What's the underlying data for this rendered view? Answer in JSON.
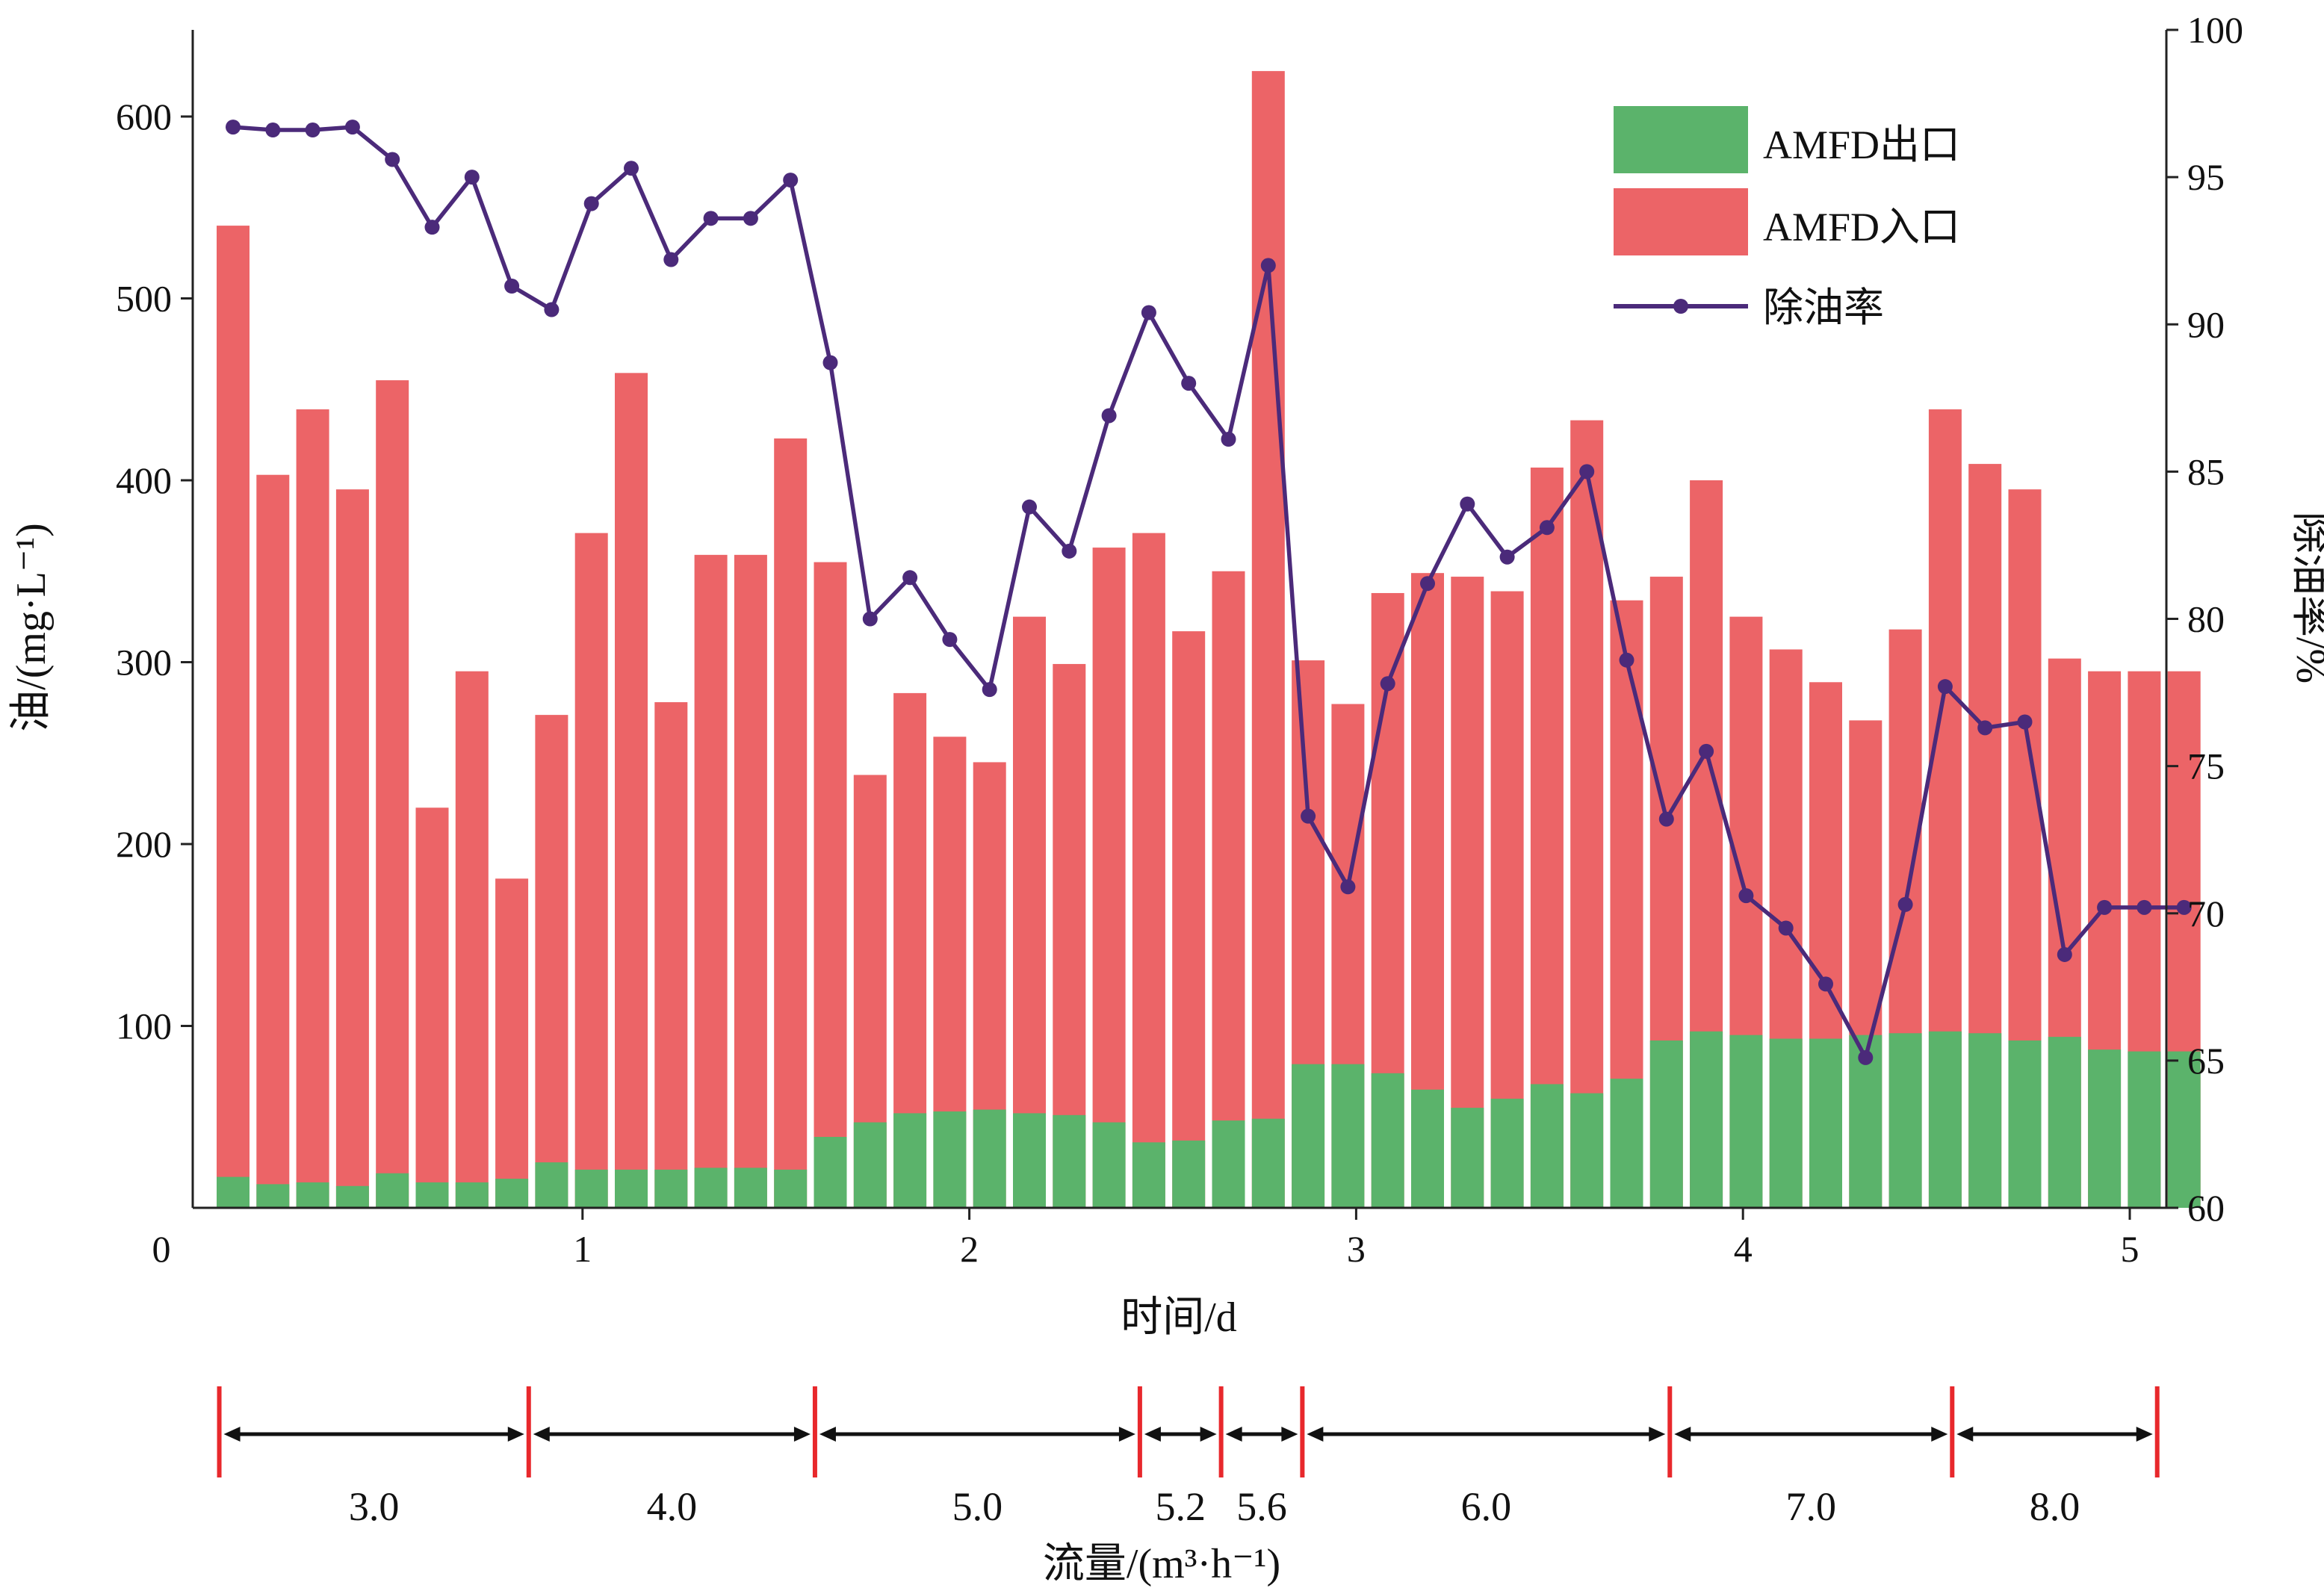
{
  "chart_data": {
    "type": "bar+line",
    "xlabel": "时间/d",
    "ylabel_left": "油/(mg·L⁻¹)",
    "ylabel_right": "除油率/%",
    "x_ticks": [
      "0",
      "1",
      "2",
      "3",
      "4",
      "5"
    ],
    "y_left_ticks": [
      "100",
      "200",
      "300",
      "400",
      "500",
      "600"
    ],
    "y_right_ticks": [
      "60",
      "65",
      "70",
      "75",
      "80",
      "85",
      "90",
      "95",
      "100"
    ],
    "xlim": [
      0,
      5
    ],
    "ylim_left": [
      0,
      650
    ],
    "ylim_right": [
      60,
      100
    ],
    "legend_position": "top-right",
    "x": [
      0.1,
      0.2,
      0.3,
      0.4,
      0.5,
      0.6,
      0.7,
      0.8,
      0.9,
      1.0,
      1.1,
      1.2,
      1.3,
      1.4,
      1.5,
      1.6,
      1.7,
      1.8,
      1.9,
      2.0,
      2.1,
      2.2,
      2.3,
      2.4,
      2.5,
      2.6,
      2.7,
      2.8,
      2.9,
      3.0,
      3.1,
      3.2,
      3.3,
      3.4,
      3.5,
      3.6,
      3.7,
      3.8,
      3.9,
      4.0,
      4.1,
      4.2,
      4.3,
      4.4,
      4.5,
      4.6,
      4.7,
      4.8,
      4.9,
      5.0
    ],
    "series": [
      {
        "name": "AMFD出口",
        "type": "bar",
        "color": "#5bb36b",
        "values": [
          17,
          13,
          14,
          12,
          19,
          14,
          14,
          16,
          25,
          21,
          21,
          21,
          22,
          22,
          21,
          39,
          47,
          52,
          53,
          54,
          52,
          51,
          47,
          36,
          37,
          48,
          49,
          79,
          79,
          74,
          65,
          55,
          60,
          68,
          63,
          71,
          92,
          97,
          95,
          93,
          93,
          95,
          96,
          97,
          96,
          92,
          94,
          87,
          86,
          86
        ]
      },
      {
        "name": "AMFD入口",
        "type": "bar",
        "color": "#ec6467",
        "values": [
          540,
          403,
          439,
          395,
          455,
          220,
          295,
          181,
          271,
          371,
          459,
          278,
          359,
          359,
          423,
          355,
          238,
          283,
          259,
          245,
          325,
          299,
          363,
          371,
          317,
          350,
          625,
          301,
          277,
          338,
          349,
          347,
          339,
          407,
          433,
          334,
          347,
          400,
          325,
          307,
          289,
          268,
          318,
          439,
          409,
          395,
          302,
          295,
          295,
          295
        ]
      },
      {
        "name": "除油率",
        "type": "line",
        "color": "#4b2a7a",
        "values": [
          96.7,
          96.6,
          96.6,
          96.7,
          95.6,
          93.3,
          95.0,
          91.3,
          90.5,
          94.1,
          95.3,
          92.2,
          93.6,
          93.6,
          94.9,
          88.7,
          80.0,
          81.4,
          79.3,
          77.6,
          83.8,
          82.3,
          86.9,
          90.4,
          88.0,
          86.1,
          92.0,
          73.3,
          70.9,
          77.8,
          81.2,
          83.9,
          82.1,
          83.1,
          85.0,
          78.6,
          73.2,
          75.5,
          70.6,
          69.5,
          67.6,
          65.1,
          70.3,
          77.7,
          76.3,
          76.5,
          68.6,
          70.2,
          70.2,
          70.2
        ]
      }
    ]
  },
  "flow_axis": {
    "label": "流量/(m³·h⁻¹)",
    "segments": [
      {
        "label": "3.0",
        "start": 0.03,
        "end": 0.83
      },
      {
        "label": "4.0",
        "start": 0.83,
        "end": 1.57
      },
      {
        "label": "5.0",
        "start": 1.57,
        "end": 2.41
      },
      {
        "label": "5.2",
        "start": 2.41,
        "end": 2.62
      },
      {
        "label": "5.6",
        "start": 2.62,
        "end": 2.83
      },
      {
        "label": "6.0",
        "start": 2.83,
        "end": 3.78
      },
      {
        "label": "7.0",
        "start": 3.78,
        "end": 4.51
      },
      {
        "label": "8.0",
        "start": 4.51,
        "end": 5.04
      }
    ]
  }
}
